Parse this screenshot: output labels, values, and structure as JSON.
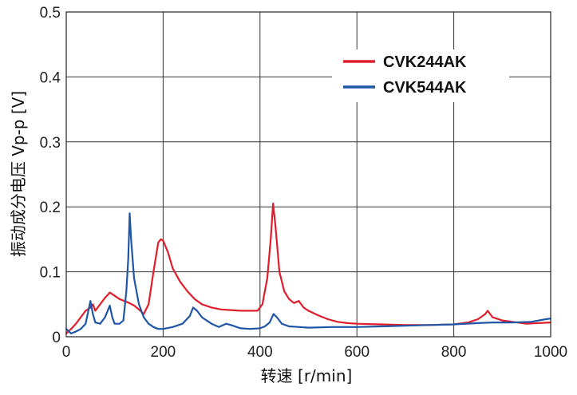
{
  "chart_data": {
    "type": "line",
    "xlabel": "转速 [r/min]",
    "ylabel": "振动成分电压 Vp-p [V]",
    "xlim": [
      0,
      1000
    ],
    "ylim": [
      0,
      0.5
    ],
    "x_ticks": [
      "0",
      "200",
      "400",
      "600",
      "800",
      "1000"
    ],
    "y_ticks": [
      "0",
      "0.1",
      "0.2",
      "0.3",
      "0.4",
      "0.5"
    ],
    "grid": true,
    "legend_position": "top-right",
    "series": [
      {
        "name": "CVK244AK",
        "color": "#e01e2b",
        "points": [
          [
            0,
            0.005
          ],
          [
            10,
            0.012
          ],
          [
            20,
            0.02
          ],
          [
            30,
            0.03
          ],
          [
            40,
            0.04
          ],
          [
            50,
            0.045
          ],
          [
            55,
            0.05
          ],
          [
            60,
            0.04
          ],
          [
            70,
            0.05
          ],
          [
            80,
            0.06
          ],
          [
            90,
            0.068
          ],
          [
            100,
            0.063
          ],
          [
            110,
            0.058
          ],
          [
            120,
            0.055
          ],
          [
            130,
            0.052
          ],
          [
            140,
            0.048
          ],
          [
            150,
            0.042
          ],
          [
            160,
            0.035
          ],
          [
            170,
            0.05
          ],
          [
            180,
            0.1
          ],
          [
            190,
            0.145
          ],
          [
            195,
            0.15
          ],
          [
            200,
            0.148
          ],
          [
            210,
            0.13
          ],
          [
            220,
            0.105
          ],
          [
            235,
            0.085
          ],
          [
            250,
            0.07
          ],
          [
            265,
            0.058
          ],
          [
            280,
            0.05
          ],
          [
            300,
            0.045
          ],
          [
            320,
            0.042
          ],
          [
            340,
            0.041
          ],
          [
            360,
            0.04
          ],
          [
            380,
            0.04
          ],
          [
            395,
            0.04
          ],
          [
            405,
            0.05
          ],
          [
            415,
            0.09
          ],
          [
            422,
            0.15
          ],
          [
            427,
            0.205
          ],
          [
            432,
            0.17
          ],
          [
            440,
            0.1
          ],
          [
            450,
            0.07
          ],
          [
            460,
            0.058
          ],
          [
            470,
            0.052
          ],
          [
            480,
            0.055
          ],
          [
            490,
            0.045
          ],
          [
            500,
            0.04
          ],
          [
            520,
            0.033
          ],
          [
            540,
            0.027
          ],
          [
            560,
            0.023
          ],
          [
            580,
            0.021
          ],
          [
            600,
            0.02
          ],
          [
            650,
            0.019
          ],
          [
            700,
            0.018
          ],
          [
            750,
            0.018
          ],
          [
            800,
            0.019
          ],
          [
            830,
            0.022
          ],
          [
            850,
            0.027
          ],
          [
            865,
            0.035
          ],
          [
            870,
            0.04
          ],
          [
            880,
            0.03
          ],
          [
            900,
            0.025
          ],
          [
            950,
            0.02
          ],
          [
            1000,
            0.022
          ]
        ]
      },
      {
        "name": "CVK544AK",
        "color": "#1f56a6",
        "points": [
          [
            0,
            0.012
          ],
          [
            10,
            0.005
          ],
          [
            20,
            0.008
          ],
          [
            30,
            0.012
          ],
          [
            40,
            0.02
          ],
          [
            50,
            0.055
          ],
          [
            55,
            0.035
          ],
          [
            60,
            0.022
          ],
          [
            70,
            0.02
          ],
          [
            80,
            0.03
          ],
          [
            90,
            0.048
          ],
          [
            95,
            0.03
          ],
          [
            100,
            0.02
          ],
          [
            110,
            0.02
          ],
          [
            118,
            0.025
          ],
          [
            124,
            0.07
          ],
          [
            128,
            0.12
          ],
          [
            131,
            0.19
          ],
          [
            134,
            0.15
          ],
          [
            140,
            0.09
          ],
          [
            150,
            0.05
          ],
          [
            160,
            0.03
          ],
          [
            170,
            0.02
          ],
          [
            180,
            0.015
          ],
          [
            190,
            0.012
          ],
          [
            200,
            0.012
          ],
          [
            220,
            0.015
          ],
          [
            240,
            0.02
          ],
          [
            255,
            0.032
          ],
          [
            262,
            0.045
          ],
          [
            270,
            0.04
          ],
          [
            280,
            0.03
          ],
          [
            300,
            0.02
          ],
          [
            315,
            0.015
          ],
          [
            330,
            0.02
          ],
          [
            340,
            0.018
          ],
          [
            360,
            0.013
          ],
          [
            380,
            0.012
          ],
          [
            400,
            0.013
          ],
          [
            410,
            0.016
          ],
          [
            420,
            0.022
          ],
          [
            428,
            0.035
          ],
          [
            435,
            0.03
          ],
          [
            445,
            0.02
          ],
          [
            460,
            0.016
          ],
          [
            500,
            0.014
          ],
          [
            550,
            0.015
          ],
          [
            600,
            0.015
          ],
          [
            650,
            0.016
          ],
          [
            700,
            0.017
          ],
          [
            750,
            0.018
          ],
          [
            800,
            0.019
          ],
          [
            850,
            0.021
          ],
          [
            880,
            0.022
          ],
          [
            920,
            0.022
          ],
          [
            960,
            0.023
          ],
          [
            990,
            0.027
          ],
          [
            1000,
            0.028
          ]
        ]
      }
    ]
  }
}
